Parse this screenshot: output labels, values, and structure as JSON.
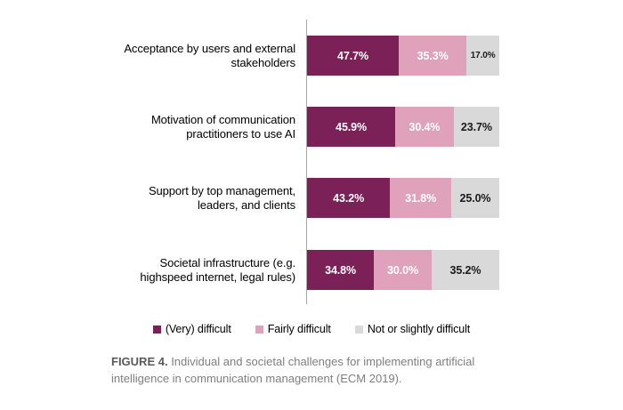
{
  "figure": {
    "caption_prefix": "FIGURE 4.",
    "caption_text": " Individual and societal challenges for implementing artificial intelligence in communication management (ECM 2019)."
  },
  "chart_data": {
    "type": "bar",
    "orientation": "horizontal",
    "stacked": true,
    "grid": false,
    "legend_position": "bottom",
    "xlim": [
      0,
      100
    ],
    "value_suffix": "%",
    "axis_line_color": "#a6a6a6",
    "categories": [
      "Acceptance by users and external stakeholders",
      "Motivation of communication practitioners to use AI",
      "Support by top management, leaders, and clients",
      "Societal infrastructure (e.g. highspeed internet, legal rules)"
    ],
    "categories_display": [
      "Acceptance by users and external\nstakeholders",
      "Motivation of communication\npractitioners to use AI",
      "Support by top management,\nleaders, and clients",
      "Societal infrastructure (e.g.\nhighspeed internet, legal rules)"
    ],
    "series": [
      {
        "name": "(Very) difficult",
        "color": "#7c2158",
        "label_color": "#ffffff",
        "values": [
          47.7,
          45.9,
          43.2,
          34.8
        ]
      },
      {
        "name": "Fairly difficult",
        "color": "#e0a1ba",
        "label_color": "#ffffff",
        "values": [
          35.3,
          30.4,
          31.8,
          30.0
        ]
      },
      {
        "name": "Not or slightly difficult",
        "color": "#d9d9d9",
        "label_color": "#1a1a1a",
        "values": [
          17.0,
          23.7,
          25.0,
          35.2
        ]
      }
    ]
  }
}
